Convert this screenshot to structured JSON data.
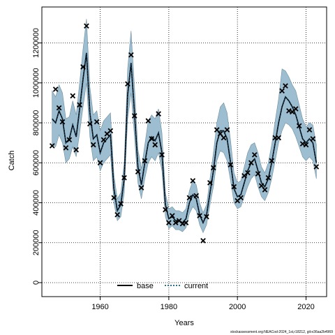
{
  "chart_data": {
    "type": "line",
    "xlabel": "Years",
    "ylabel": "Catch",
    "footer": "stockassessment.org:NEACod-2024_1st,r18212, git:e36aa2b4969",
    "xlim": [
      1943,
      2026
    ],
    "ylim": [
      -70000,
      1380000
    ],
    "x_ticks": [
      1960,
      1980,
      2000,
      2020
    ],
    "y_ticks": [
      0,
      200000,
      400000,
      600000,
      800000,
      1000000,
      1200000
    ],
    "y_tick_labels": [
      "0",
      "200000",
      "400000",
      "600000",
      "800000",
      "1000000",
      "1200000"
    ],
    "grid": true,
    "legend": {
      "position": "bottom",
      "entries": [
        {
          "label": "base",
          "style": "solid",
          "color": "#000000"
        },
        {
          "label": "current",
          "style": "dotted",
          "color": "#2c6f8f"
        }
      ]
    },
    "colors": {
      "band": "#9dbdd0",
      "band_edge": "#6f8fa0",
      "base": "#000000",
      "current": "#0d3550",
      "observed": "#000000"
    },
    "years": [
      1946,
      1947,
      1948,
      1949,
      1950,
      1951,
      1952,
      1953,
      1954,
      1955,
      1956,
      1957,
      1958,
      1959,
      1960,
      1961,
      1962,
      1963,
      1964,
      1965,
      1966,
      1967,
      1968,
      1969,
      1970,
      1971,
      1972,
      1973,
      1974,
      1975,
      1976,
      1977,
      1978,
      1979,
      1980,
      1981,
      1982,
      1983,
      1984,
      1985,
      1986,
      1987,
      1988,
      1989,
      1990,
      1991,
      1992,
      1993,
      1994,
      1995,
      1996,
      1997,
      1998,
      1999,
      2000,
      2001,
      2002,
      2003,
      2004,
      2005,
      2006,
      2007,
      2008,
      2009,
      2010,
      2011,
      2012,
      2013,
      2014,
      2015,
      2016,
      2017,
      2018,
      2019,
      2020,
      2021,
      2022,
      2023
    ],
    "observed": [
      685000,
      968000,
      875000,
      805000,
      675000,
      715000,
      935000,
      665000,
      890000,
      1080000,
      1285000,
      795000,
      690000,
      805000,
      600000,
      715000,
      745000,
      760000,
      425000,
      340000,
      395000,
      525000,
      995000,
      1140000,
      835000,
      555000,
      475000,
      610000,
      810000,
      720000,
      690000,
      845000,
      640000,
      365000,
      300000,
      335000,
      300000,
      310000,
      295000,
      300000,
      425000,
      510000,
      435000,
      335000,
      210000,
      330000,
      500000,
      575000,
      765000,
      745000,
      725000,
      765000,
      590000,
      480000,
      410000,
      425000,
      535000,
      550000,
      600000,
      640000,
      545000,
      485000,
      465000,
      525000,
      610000,
      725000,
      725000,
      960000,
      985000,
      860000,
      855000,
      870000,
      785000,
      695000,
      690000,
      765000,
      720000,
      580000
    ],
    "fitted": [
      820000,
      800000,
      860000,
      820000,
      700000,
      720000,
      790000,
      730000,
      870000,
      1020000,
      1150000,
      850000,
      720000,
      740000,
      650000,
      700000,
      720000,
      740000,
      470000,
      360000,
      390000,
      520000,
      940000,
      1100000,
      850000,
      580000,
      490000,
      600000,
      700000,
      730000,
      710000,
      750000,
      650000,
      390000,
      320000,
      330000,
      310000,
      310000,
      300000,
      320000,
      400000,
      440000,
      420000,
      340000,
      300000,
      340000,
      450000,
      560000,
      700000,
      760000,
      760000,
      720000,
      600000,
      470000,
      430000,
      440000,
      500000,
      560000,
      600000,
      620000,
      560000,
      500000,
      480000,
      520000,
      600000,
      700000,
      800000,
      880000,
      930000,
      910000,
      880000,
      840000,
      780000,
      720000,
      700000,
      720000,
      700000,
      600000
    ],
    "upper": [
      960000,
      930000,
      990000,
      950000,
      820000,
      830000,
      910000,
      840000,
      1000000,
      1170000,
      1320000,
      980000,
      840000,
      860000,
      760000,
      810000,
      830000,
      850000,
      540000,
      420000,
      450000,
      600000,
      1070000,
      1260000,
      980000,
      670000,
      570000,
      690000,
      810000,
      840000,
      820000,
      870000,
      750000,
      450000,
      370000,
      380000,
      360000,
      360000,
      350000,
      370000,
      460000,
      510000,
      490000,
      400000,
      350000,
      390000,
      520000,
      650000,
      800000,
      880000,
      900000,
      850000,
      710000,
      550000,
      500000,
      510000,
      580000,
      650000,
      690000,
      700000,
      650000,
      580000,
      550000,
      600000,
      690000,
      810000,
      920000,
      1070000,
      1060000,
      1030000,
      990000,
      960000,
      890000,
      820000,
      780000,
      800000,
      790000,
      690000
    ],
    "lower": [
      690000,
      680000,
      740000,
      700000,
      600000,
      620000,
      680000,
      630000,
      750000,
      880000,
      1000000,
      730000,
      610000,
      630000,
      560000,
      600000,
      620000,
      640000,
      400000,
      310000,
      330000,
      450000,
      820000,
      950000,
      730000,
      500000,
      420000,
      520000,
      600000,
      630000,
      610000,
      650000,
      560000,
      330000,
      270000,
      285000,
      265000,
      265000,
      255000,
      275000,
      345000,
      380000,
      360000,
      290000,
      250000,
      290000,
      390000,
      480000,
      610000,
      660000,
      650000,
      610000,
      510000,
      400000,
      370000,
      380000,
      430000,
      480000,
      520000,
      540000,
      480000,
      430000,
      410000,
      450000,
      520000,
      610000,
      700000,
      760000,
      800000,
      790000,
      770000,
      730000,
      680000,
      630000,
      610000,
      630000,
      610000,
      520000
    ]
  }
}
